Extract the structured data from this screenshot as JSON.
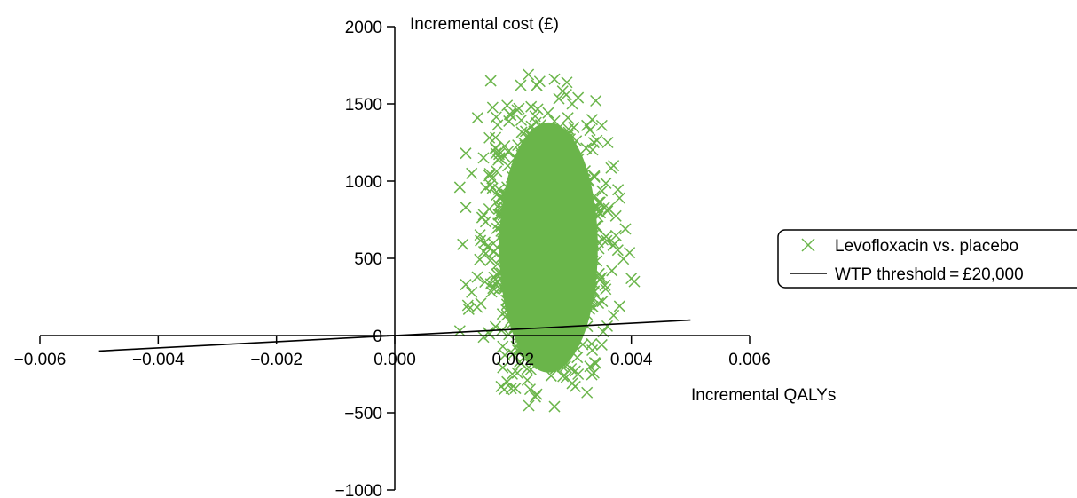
{
  "chart_data": {
    "type": "scatter",
    "xlabel": "Incremental QALYs",
    "ylabel": "Incremental cost (£)",
    "xlim": [
      -0.006,
      0.006
    ],
    "ylim": [
      -1000,
      2000
    ],
    "x_ticks": [
      -0.006,
      -0.004,
      -0.002,
      0.0,
      0.002,
      0.004,
      0.006
    ],
    "x_tick_labels": [
      "−0.006",
      "−0.004",
      "−0.002",
      "0.000",
      "0.002",
      "0.004",
      "0.006"
    ],
    "y_ticks": [
      2000,
      1500,
      1000,
      500,
      0,
      -500,
      -1000
    ],
    "y_tick_labels": [
      "2000",
      "1500",
      "1000",
      "500",
      "0",
      "−500",
      "−1000"
    ],
    "colors": {
      "scatter": "#6ab54a",
      "threshold": "#000000"
    },
    "series": [
      {
        "name": "Levofloxacin vs. placebo",
        "marker": "x",
        "distribution": {
          "x_mean": 0.00255,
          "x_sd": 0.00045,
          "y_mean": 600,
          "y_sd": 360,
          "n": 5000
        },
        "points": [
          [
            0.0027,
            1660
          ],
          [
            0.00245,
            1645
          ],
          [
            0.0024,
            1620
          ],
          [
            0.0029,
            1560
          ],
          [
            0.0031,
            1540
          ],
          [
            0.0034,
            1520
          ],
          [
            0.003,
            1500
          ],
          [
            0.0019,
            1490
          ],
          [
            0.0021,
            1470
          ],
          [
            0.0014,
            1410
          ],
          [
            0.0035,
            1360
          ],
          [
            0.0033,
            1330
          ],
          [
            0.0016,
            1280
          ],
          [
            0.0036,
            1250
          ],
          [
            0.0012,
            1180
          ],
          [
            0.0015,
            1150
          ],
          [
            0.0037,
            1100
          ],
          [
            0.0013,
            1050
          ],
          [
            0.0011,
            960
          ],
          [
            0.0038,
            890
          ],
          [
            0.0012,
            830
          ],
          [
            0.0039,
            690
          ],
          [
            0.00115,
            590
          ],
          [
            0.004,
            370
          ],
          [
            0.00405,
            350
          ],
          [
            0.0012,
            330
          ],
          [
            0.0013,
            280
          ],
          [
            0.0038,
            190
          ],
          [
            0.00125,
            170
          ],
          [
            0.0037,
            130
          ],
          [
            0.0011,
            30
          ],
          [
            0.0016,
            10
          ],
          [
            0.0015,
            -10
          ],
          [
            0.0035,
            -60
          ],
          [
            0.002,
            -120
          ],
          [
            0.0034,
            -180
          ],
          [
            0.0033,
            -200
          ],
          [
            0.0023,
            -220
          ],
          [
            0.0031,
            -250
          ],
          [
            0.0029,
            -270
          ],
          [
            0.0019,
            -300
          ],
          [
            0.003,
            -310
          ],
          [
            0.00305,
            -330
          ],
          [
            0.0018,
            -330
          ],
          [
            0.00185,
            -350
          ],
          [
            0.0024,
            -380
          ],
          [
            0.0027,
            -460
          ]
        ]
      },
      {
        "name": "WTP threshold = £20,000",
        "type": "line",
        "points": [
          [
            -0.005,
            -100
          ],
          [
            0.005,
            100
          ]
        ]
      }
    ],
    "legend": {
      "position": "right",
      "entries": [
        "Levofloxacin vs. placebo",
        "WTP threshold = £20,000"
      ]
    }
  }
}
